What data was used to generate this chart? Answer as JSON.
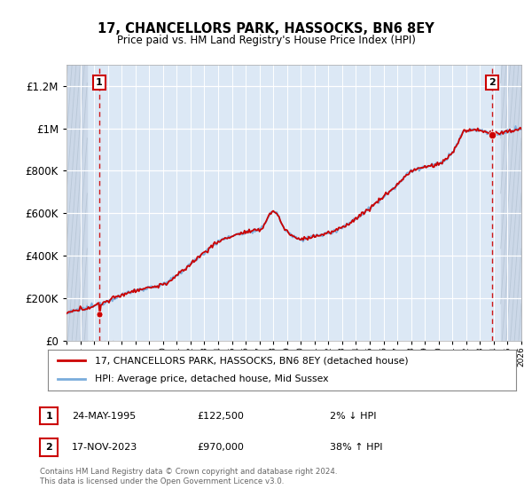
{
  "title": "17, CHANCELLORS PARK, HASSOCKS, BN6 8EY",
  "subtitle": "Price paid vs. HM Land Registry's House Price Index (HPI)",
  "legend_line1": "17, CHANCELLORS PARK, HASSOCKS, BN6 8EY (detached house)",
  "legend_line2": "HPI: Average price, detached house, Mid Sussex",
  "annotation1_date": "24-MAY-1995",
  "annotation1_price": "£122,500",
  "annotation1_hpi": "2% ↓ HPI",
  "annotation2_date": "17-NOV-2023",
  "annotation2_price": "£970,000",
  "annotation2_hpi": "38% ↑ HPI",
  "footer": "Contains HM Land Registry data © Crown copyright and database right 2024.\nThis data is licensed under the Open Government Licence v3.0.",
  "sale1_year": 1995.38,
  "sale1_price": 122500,
  "sale2_year": 2023.88,
  "sale2_price": 970000,
  "xlim": [
    1993,
    2026
  ],
  "ylim": [
    0,
    1300000
  ],
  "line_color_red": "#cc0000",
  "line_color_blue": "#7aaddc",
  "bg_color_main": "#dce8f5",
  "bg_color_hatch": "#ccd8e8",
  "grid_color": "#b8c8d8",
  "hatch_region_left_end": 1994.5,
  "hatch_region_right_start": 2024.5
}
